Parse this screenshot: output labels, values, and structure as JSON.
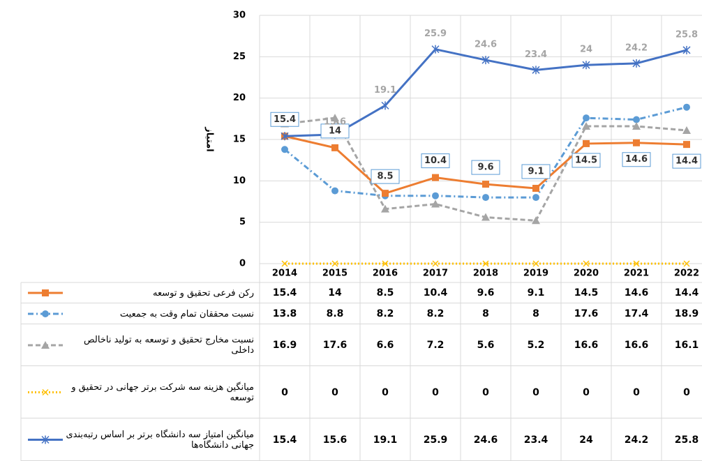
{
  "chart_data": {
    "type": "line",
    "y_label": "امتیاز",
    "categories": [
      "2014",
      "2015",
      "2016",
      "2017",
      "2018",
      "2019",
      "2020",
      "2021",
      "2022"
    ],
    "ylim": [
      0,
      30
    ],
    "yticks": [
      0,
      5,
      10,
      15,
      20,
      25,
      30
    ],
    "grid": true,
    "series": [
      {
        "name": "رکن فرعی تحقیق و توسعه",
        "color": "#ED7D31",
        "marker": "square",
        "values": [
          15.4,
          14,
          8.5,
          10.4,
          9.6,
          9.1,
          14.5,
          14.6,
          14.4
        ]
      },
      {
        "name": "نسبت محققان تمام وقت به جمعیت",
        "color": "#5B9BD5",
        "marker": "circle",
        "values": [
          13.8,
          8.8,
          8.2,
          8.2,
          8,
          8,
          17.6,
          17.4,
          18.9
        ]
      },
      {
        "name": "نسبت مخارج تحقیق و توسعه به تولید ناخالص داخلی",
        "color": "#A5A5A5",
        "marker": "triangle",
        "values": [
          16.9,
          17.6,
          6.6,
          7.2,
          5.6,
          5.2,
          16.6,
          16.6,
          16.1
        ]
      },
      {
        "name": "میانگین هزینه سه شرکت برتر جهانی در تحقیق و توسعه",
        "color": "#FFC000",
        "marker": "x",
        "values": [
          0,
          0,
          0,
          0,
          0,
          0,
          0,
          0,
          0
        ]
      },
      {
        "name": "میانگین امتیاز سه دانشگاه برتر بر اساس رتبه‌بندی جهانی دانشگاه‌ها",
        "color": "#4472C4",
        "marker": "star",
        "values": [
          15.4,
          15.6,
          19.1,
          25.9,
          24.6,
          23.4,
          24,
          24.2,
          25.8
        ]
      }
    ]
  }
}
